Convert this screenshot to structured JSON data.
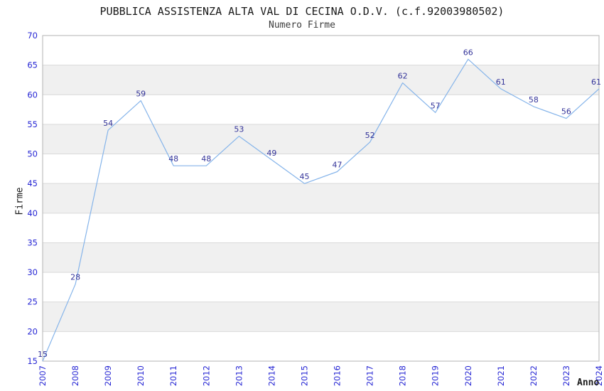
{
  "chart_data": {
    "type": "line",
    "title": "PUBBLICA ASSISTENZA ALTA VAL DI CECINA O.D.V. (c.f.92003980502)",
    "subtitle": "Numero Firme",
    "xlabel": "Anno",
    "ylabel": "Firme",
    "categories": [
      "2007",
      "2008",
      "2009",
      "2010",
      "2011",
      "2012",
      "2013",
      "2014",
      "2015",
      "2016",
      "2017",
      "2018",
      "2019",
      "2020",
      "2021",
      "2022",
      "2023",
      "2024"
    ],
    "series": [
      {
        "name": "Numero Firme",
        "values": [
          15,
          28,
          54,
          59,
          48,
          48,
          53,
          49,
          45,
          47,
          52,
          62,
          57,
          66,
          61,
          58,
          56,
          61
        ]
      }
    ],
    "ylim": [
      15,
      70
    ],
    "ytick_step": 5,
    "grid": true,
    "alternating_bands": true,
    "legend_position": "none",
    "data_labels_shown": true,
    "colors": {
      "line": "#85b4ea",
      "band": "#f0f0f0",
      "gridline": "#d9d9d9",
      "frame": "#b3b3b3",
      "tick_labels": "#2626d4",
      "data_labels": "#333399",
      "title_text": "#1a1a1a"
    }
  }
}
